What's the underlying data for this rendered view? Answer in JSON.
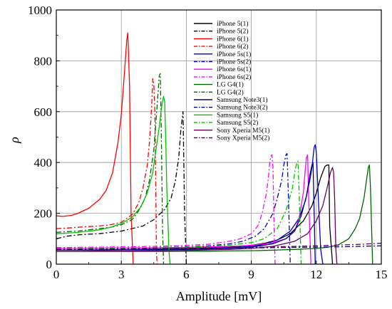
{
  "chart_data": {
    "type": "line",
    "xlabel": "Amplitude [mV]",
    "ylabel": "ρ",
    "xlim": [
      0,
      15
    ],
    "ylim": [
      0,
      1000
    ],
    "xticks": [
      0,
      3,
      6,
      9,
      12,
      15
    ],
    "yticks": [
      0,
      200,
      400,
      600,
      800,
      1000
    ],
    "grid": true,
    "legend_position": "top-right",
    "series": [
      {
        "name": "iPhone 5(1)",
        "color": "#000000",
        "dash": "solid",
        "x": [
          0,
          0.6,
          1.2,
          1.8,
          2.4,
          3.0,
          3.6,
          4.2,
          4.8,
          5.4,
          6.0,
          6.6,
          7.2,
          7.8,
          8.4,
          9.0,
          9.6,
          10.2,
          10.8,
          11.4,
          11.8,
          12.0,
          12.2,
          12.4,
          12.5,
          12.58,
          12.62,
          12.75
        ],
        "y": [
          55,
          55,
          56,
          56,
          57,
          57,
          58,
          59,
          60,
          61,
          62,
          63,
          65,
          67,
          70,
          74,
          82,
          95,
          120,
          170,
          230,
          280,
          340,
          385,
          390,
          390,
          150,
          0
        ]
      },
      {
        "name": "iPhone 5(2)",
        "color": "#000000",
        "dash": "dashdot",
        "x": [
          0,
          0.5,
          1.0,
          1.5,
          2.0,
          2.5,
          3.0,
          3.5,
          4.0,
          4.5,
          5.0,
          5.3,
          5.5,
          5.65,
          5.75,
          5.85,
          5.92,
          6.0
        ],
        "y": [
          100,
          110,
          115,
          118,
          120,
          125,
          130,
          140,
          150,
          175,
          215,
          260,
          330,
          420,
          530,
          600,
          200,
          0
        ]
      },
      {
        "name": "iPhone 6(1)",
        "color": "#ff0000",
        "dash": "solid",
        "x": [
          0,
          0.3,
          0.7,
          1.0,
          1.5,
          2.0,
          2.3,
          2.6,
          2.85,
          3.0,
          3.1,
          3.2,
          3.25,
          3.3,
          3.38,
          3.45,
          3.55
        ],
        "y": [
          190,
          188,
          192,
          200,
          220,
          255,
          290,
          360,
          480,
          590,
          700,
          820,
          880,
          910,
          700,
          200,
          0
        ]
      },
      {
        "name": "iPhone 6(2)",
        "color": "#ff0000",
        "dash": "dashdot",
        "x": [
          0,
          0.5,
          1.0,
          1.5,
          2.0,
          2.5,
          3.0,
          3.5,
          3.8,
          4.0,
          4.2,
          4.3,
          4.4,
          4.45,
          4.5,
          4.55,
          4.6,
          4.62,
          4.65
        ],
        "y": [
          140,
          142,
          145,
          148,
          150,
          155,
          165,
          195,
          240,
          300,
          390,
          480,
          620,
          730,
          710,
          600,
          250,
          50,
          0
        ]
      },
      {
        "name": "iPhone 5s(1)",
        "color": "#0000cc",
        "dash": "solid",
        "x": [
          0,
          1.0,
          2.0,
          3.0,
          4.0,
          5.0,
          6.0,
          7.0,
          8.0,
          9.0,
          9.6,
          10.2,
          10.8,
          11.2,
          11.5,
          11.7,
          11.8,
          11.85,
          11.9,
          11.95,
          12.0,
          12.1,
          12.2,
          12.3
        ],
        "y": [
          55,
          55,
          56,
          56,
          57,
          58,
          59,
          61,
          64,
          70,
          78,
          95,
          130,
          180,
          250,
          330,
          380,
          420,
          460,
          470,
          440,
          250,
          60,
          0
        ]
      },
      {
        "name": "iPhone 5s(2)",
        "color": "#0000cc",
        "dash": "dashdot",
        "x": [
          0,
          1.0,
          2.0,
          3.0,
          4.0,
          5.0,
          6.0,
          7.0,
          8.0,
          8.6,
          9.2,
          9.6,
          10.0,
          10.2,
          10.4,
          10.5,
          10.6,
          10.65,
          10.7,
          10.8
        ],
        "y": [
          60,
          61,
          62,
          63,
          64,
          66,
          68,
          72,
          80,
          90,
          110,
          140,
          200,
          260,
          330,
          390,
          430,
          435,
          300,
          0
        ]
      },
      {
        "name": "iPhone 6s(1)",
        "color": "#ff00ff",
        "dash": "solid",
        "x": [
          0,
          1.0,
          2.0,
          3.0,
          4.0,
          5.0,
          6.0,
          7.0,
          8.0,
          9.0,
          10.0,
          10.6,
          11.0,
          11.2,
          11.4,
          11.5,
          11.55,
          11.6,
          11.65,
          11.75
        ],
        "y": [
          62,
          62,
          63,
          63,
          64,
          65,
          66,
          68,
          70,
          74,
          84,
          100,
          130,
          180,
          280,
          380,
          420,
          430,
          250,
          0
        ]
      },
      {
        "name": "iPhone 6s(2)",
        "color": "#ff00ff",
        "dash": "dashdot",
        "x": [
          0,
          1.0,
          2.0,
          3.0,
          4.0,
          5.0,
          6.0,
          7.0,
          8.0,
          8.5,
          9.0,
          9.3,
          9.5,
          9.7,
          9.8,
          9.85,
          9.9,
          9.95,
          10.0,
          10.05,
          10.1
        ],
        "y": [
          65,
          66,
          67,
          68,
          69,
          71,
          74,
          78,
          90,
          100,
          120,
          150,
          200,
          280,
          350,
          400,
          425,
          430,
          380,
          150,
          0
        ]
      },
      {
        "name": "LG G4(1)",
        "color": "#006400",
        "dash": "solid",
        "x": [
          0,
          1.0,
          2.0,
          3.0,
          4.0,
          5.0,
          6.0,
          7.0,
          8.0,
          9.0,
          10.0,
          11.0,
          12.0,
          12.5,
          13.0,
          13.5,
          13.8,
          14.0,
          14.2,
          14.3,
          14.4,
          14.45,
          14.5,
          14.6
        ],
        "y": [
          50,
          50,
          50,
          50,
          50,
          50,
          51,
          51,
          52,
          53,
          55,
          58,
          62,
          66,
          75,
          100,
          140,
          180,
          260,
          320,
          380,
          390,
          300,
          0
        ]
      },
      {
        "name": "LG G4(2)",
        "color": "#006400",
        "dash": "dashdot",
        "x": [
          0,
          0.5,
          1.0,
          1.5,
          2.0,
          2.5,
          3.0,
          3.5,
          3.8,
          4.1,
          4.3,
          4.5,
          4.6,
          4.7,
          4.75,
          4.8,
          4.85,
          4.9,
          4.95
        ],
        "y": [
          125,
          128,
          130,
          135,
          140,
          145,
          155,
          175,
          210,
          260,
          330,
          450,
          560,
          680,
          740,
          750,
          500,
          150,
          0
        ]
      },
      {
        "name": "Samsung Note3(1)",
        "color": "#000080",
        "dash": "solid",
        "x": [
          0,
          1.0,
          2.0,
          3.0,
          4.0,
          5.0,
          6.0,
          7.0,
          8.0,
          9.0,
          10.0,
          10.6,
          11.0,
          11.3,
          11.55,
          11.7,
          11.8,
          11.85,
          11.9,
          11.95
        ],
        "y": [
          55,
          55,
          55,
          56,
          56,
          57,
          58,
          59,
          62,
          67,
          80,
          100,
          130,
          190,
          270,
          350,
          390,
          400,
          200,
          0
        ]
      },
      {
        "name": "Samsung Note3(2)",
        "color": "#000080",
        "dash": "dashdot",
        "x": [
          0,
          1.0,
          2.0,
          3.0,
          4.0,
          5.0,
          6.0,
          7.0,
          8.0,
          9.0,
          10.0,
          11.0,
          12.0,
          13.0,
          14.0,
          15.0
        ],
        "y": [
          60,
          60,
          61,
          61,
          62,
          62,
          63,
          63,
          64,
          64,
          65,
          66,
          67,
          68,
          70,
          72
        ]
      },
      {
        "name": "Samsung S5(1)",
        "color": "#00c000",
        "dash": "solid",
        "x": [
          0,
          0.5,
          1.0,
          1.5,
          2.0,
          2.5,
          3.0,
          3.5,
          3.9,
          4.2,
          4.45,
          4.6,
          4.75,
          4.85,
          4.9,
          4.95,
          5.0,
          5.05,
          5.1,
          5.2,
          5.25
        ],
        "y": [
          120,
          122,
          125,
          130,
          135,
          145,
          160,
          185,
          225,
          280,
          360,
          450,
          540,
          610,
          640,
          660,
          640,
          500,
          300,
          50,
          0
        ]
      },
      {
        "name": "Samsung S5(2)",
        "color": "#00c000",
        "dash": "dashdot",
        "x": [
          0,
          1.0,
          2.0,
          3.0,
          4.0,
          5.0,
          6.0,
          7.0,
          8.0,
          9.0,
          9.6,
          10.2,
          10.6,
          10.9,
          11.0,
          11.1,
          11.15,
          11.2,
          11.3
        ],
        "y": [
          60,
          61,
          62,
          63,
          64,
          65,
          67,
          70,
          75,
          85,
          100,
          140,
          210,
          300,
          360,
          400,
          405,
          300,
          0
        ]
      },
      {
        "name": "Sony Xperia M5(1)",
        "color": "#660066",
        "dash": "solid",
        "x": [
          0,
          1.0,
          2.0,
          3.0,
          4.0,
          5.0,
          6.0,
          7.0,
          8.0,
          9.0,
          10.0,
          11.0,
          11.6,
          12.0,
          12.3,
          12.5,
          12.65,
          12.75,
          12.8,
          12.85,
          12.9,
          12.95
        ],
        "y": [
          50,
          50,
          51,
          51,
          52,
          53,
          54,
          56,
          58,
          62,
          70,
          90,
          120,
          170,
          230,
          300,
          360,
          380,
          360,
          250,
          60,
          0
        ]
      },
      {
        "name": "Sony Xperia M5(2)",
        "color": "#660066",
        "dash": "dashdot",
        "x": [
          0,
          1.0,
          2.0,
          3.0,
          4.0,
          5.0,
          6.0,
          7.0,
          8.0,
          9.0,
          10.0,
          11.0,
          12.0,
          13.0,
          14.0,
          14.5,
          15.0
        ],
        "y": [
          58,
          59,
          60,
          61,
          62,
          62,
          63,
          64,
          65,
          66,
          68,
          70,
          72,
          75,
          78,
          80,
          82
        ]
      }
    ]
  }
}
